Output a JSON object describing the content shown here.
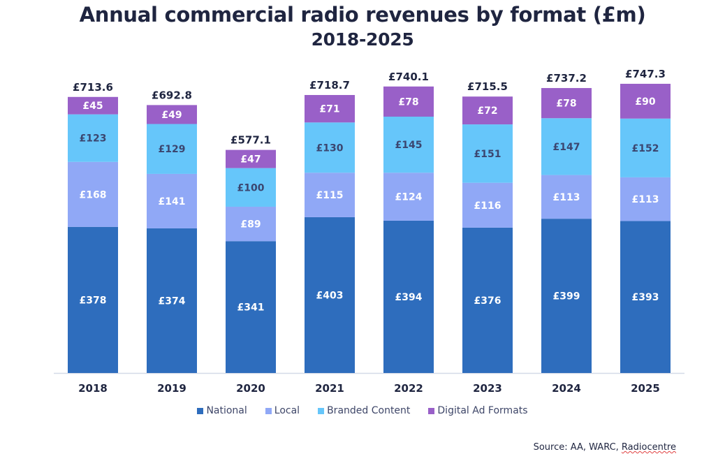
{
  "chart_data": {
    "type": "bar",
    "stacked": true,
    "title": "Annual commercial radio revenues by format (£m)",
    "subtitle": "2018-2025",
    "xlabel": "",
    "ylabel": "",
    "currency_prefix": "£",
    "categories": [
      "2018",
      "2019",
      "2020",
      "2021",
      "2022",
      "2023",
      "2024",
      "2025"
    ],
    "series": [
      {
        "name": "National",
        "color": "#2e6dbd",
        "label_color": "#ffffff",
        "values": [
          378,
          374,
          341,
          403,
          394,
          376,
          399,
          393
        ]
      },
      {
        "name": "Local",
        "color": "#90a8f6",
        "label_color": "#ffffff",
        "values": [
          168,
          141,
          89,
          115,
          124,
          116,
          113,
          113
        ]
      },
      {
        "name": "Branded Content",
        "color": "#66c6fa",
        "label_color": "#3b4670",
        "values": [
          123,
          129,
          100,
          130,
          145,
          151,
          147,
          152
        ]
      },
      {
        "name": "Digital Ad Formats",
        "color": "#9960c8",
        "label_color": "#ffffff",
        "values": [
          45,
          49,
          47,
          71,
          78,
          72,
          78,
          90
        ]
      }
    ],
    "totals": [
      "£713.6",
      "£692.8",
      "£577.1",
      "£718.7",
      "£740.1",
      "£715.5",
      "£737.2",
      "£747.3"
    ],
    "ylim": [
      0,
      750
    ],
    "grid": false,
    "legend_position": "bottom-center"
  },
  "source": {
    "prefix": "Source: AA, WARC, ",
    "underlined": "Radiocentre"
  }
}
